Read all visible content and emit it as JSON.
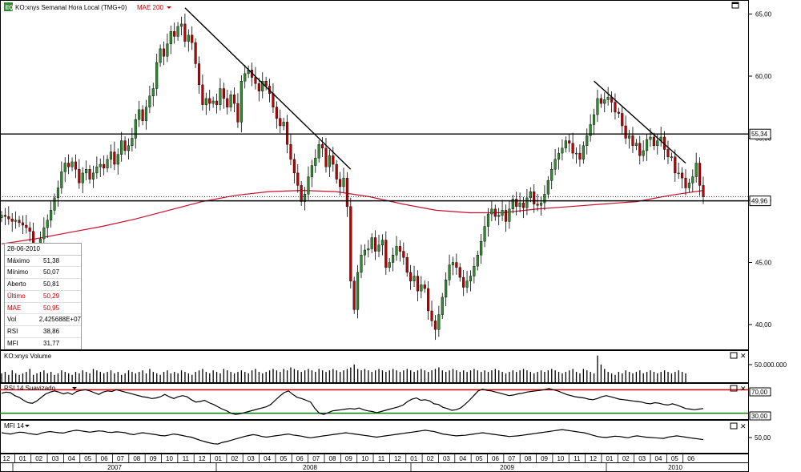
{
  "header": {
    "badge": "EQ",
    "title": "KO:xnys Semanal Hora Local (TMG+0)",
    "indicator": "MAE 200"
  },
  "price_axis": {
    "ticks": [
      "65,00",
      "60,00",
      "55,00",
      "50,00",
      "45,00",
      "40,00"
    ],
    "resistance_label": "55,34",
    "current_label": "49,96"
  },
  "info_box": {
    "date": "28-06-2010",
    "rows": [
      {
        "label": "Máximo",
        "value": "51,38"
      },
      {
        "label": "Mínimo",
        "value": "50,07"
      },
      {
        "label": "Aberto",
        "value": "50,81"
      },
      {
        "label": "Último",
        "value": "50,29"
      },
      {
        "label": "MAE",
        "value": "50,95"
      },
      {
        "label": "Vol",
        "value": "2,425688E+07"
      },
      {
        "label": "RSI",
        "value": "38,86"
      },
      {
        "label": "MFI",
        "value": "31,77"
      }
    ]
  },
  "volume_panel": {
    "title": "KO:xnys Volume",
    "tick": "50.000.000"
  },
  "rsi_panel": {
    "title": "RSI 14 Suavizado",
    "ticks": [
      "70,00",
      "30,00"
    ]
  },
  "mfi_panel": {
    "title": "MFI 14",
    "tick": "50,00"
  },
  "time_axis": {
    "months": [
      "12",
      "01",
      "02",
      "03",
      "04",
      "05",
      "06",
      "07",
      "08",
      "09",
      "10",
      "11",
      "12",
      "01",
      "02",
      "03",
      "04",
      "05",
      "06",
      "07",
      "08",
      "09",
      "10",
      "11",
      "12",
      "01",
      "02",
      "03",
      "04",
      "05",
      "06",
      "07",
      "08",
      "09",
      "10",
      "11",
      "12",
      "01",
      "02",
      "03",
      "04",
      "05",
      "06"
    ],
    "years": [
      "2007",
      "2008",
      "2009",
      "2010"
    ]
  },
  "colors": {
    "up": "#2e8b2e",
    "down": "#c00000",
    "mae": "#c8102e",
    "rsi_high": "#e00000",
    "rsi_low": "#008000"
  },
  "chart_data": [
    {
      "type": "candlestick",
      "title": "KO:xnys Semanal Hora Local (TMG+0)",
      "ylim": [
        38,
        66
      ],
      "weekly_closes": [
        48.8,
        48.7,
        48.5,
        48.3,
        48.4,
        48.2,
        48.0,
        47.8,
        47.5,
        46.2,
        45.8,
        46.9,
        47.8,
        48.4,
        49.2,
        50.2,
        51.0,
        52.3,
        53.0,
        52.7,
        53.1,
        52.5,
        51.4,
        52.2,
        52.5,
        51.7,
        52.2,
        52.7,
        52.9,
        52.6,
        53.3,
        53.9,
        52.9,
        53.7,
        54.8,
        54.0,
        54.4,
        55.0,
        56.5,
        57.3,
        56.4,
        57.5,
        58.4,
        59.0,
        61.1,
        62.2,
        61.6,
        62.6,
        63.6,
        63.2,
        64.0,
        64.2,
        62.8,
        63.3,
        62.7,
        61.0,
        59.3,
        57.7,
        58.2,
        57.8,
        58.0,
        57.7,
        59.0,
        58.2,
        57.5,
        58.5,
        57.8,
        56.3,
        59.6,
        60.2,
        60.5,
        59.9,
        59.4,
        58.8,
        59.6,
        59.2,
        58.6,
        57.5,
        56.6,
        56.0,
        56.3,
        54.5,
        53.3,
        52.2,
        51.2,
        49.9,
        50.5,
        51.9,
        52.8,
        53.4,
        54.5,
        54.2,
        52.7,
        53.6,
        52.9,
        51.7,
        51.1,
        51.8,
        49.5,
        43.5,
        41.2,
        44.2,
        45.6,
        46.0,
        46.1,
        47.0,
        45.9,
        46.4,
        46.8,
        44.6,
        45.0,
        45.6,
        46.3,
        45.9,
        45.4,
        44.2,
        43.5,
        43.9,
        42.7,
        43.2,
        42.9,
        41.1,
        40.3,
        39.6,
        40.8,
        42.2,
        43.6,
        44.8,
        45.0,
        44.6,
        43.8,
        43.0,
        43.5,
        43.9,
        44.7,
        45.6,
        46.7,
        47.9,
        48.9,
        49.3,
        48.7,
        48.8,
        49.2,
        48.3,
        49.3,
        50.1,
        49.5,
        49.8,
        49.4,
        50.2,
        50.7,
        49.7,
        49.6,
        49.8,
        50.5,
        51.6,
        52.5,
        53.3,
        53.8,
        54.2,
        54.8,
        54.6,
        53.8,
        53.8,
        53.3,
        54.4,
        55.2,
        56.1,
        56.9,
        58.2,
        57.8,
        58.1,
        58.3,
        57.9,
        57.1,
        57.0,
        56.0,
        55.0,
        55.2,
        54.4,
        54.6,
        53.6,
        54.0,
        54.9,
        55.1,
        54.4,
        54.8,
        55.1,
        54.1,
        53.5,
        53.5,
        52.2,
        52.2,
        51.8,
        51.0,
        51.4,
        51.9,
        53.0,
        51.2,
        50.3
      ],
      "mae200": {
        "name": "MAE 200",
        "values": [
          46.5,
          46.9,
          47.4,
          47.9,
          48.5,
          49.2,
          49.9,
          50.4,
          50.7,
          50.8,
          50.7,
          50.3,
          49.7,
          49.2,
          49.0,
          49.0,
          49.3,
          49.5,
          49.7,
          49.9,
          50.4,
          50.8
        ]
      },
      "annotations": [
        {
          "type": "hline",
          "y": 55.34
        },
        {
          "type": "hline",
          "y": 49.96
        },
        {
          "type": "trendline",
          "from": [
            52,
            65.5
          ],
          "to": [
            99,
            52.5
          ]
        },
        {
          "type": "trendline",
          "from": [
            168,
            59.6
          ],
          "to": [
            194,
            53.0
          ]
        }
      ]
    },
    {
      "type": "bar",
      "title": "KO:xnys Volume",
      "values": [
        6,
        7,
        5,
        8,
        6,
        5,
        6,
        7,
        9,
        5,
        6,
        7,
        8,
        6,
        7,
        5,
        6,
        8,
        7,
        6,
        5,
        7,
        6,
        8,
        7,
        6,
        9,
        8,
        7,
        6,
        7,
        8,
        6,
        7,
        5,
        6,
        8,
        7,
        6,
        7,
        8,
        6,
        9,
        7,
        6,
        5,
        7,
        8,
        6,
        7,
        6,
        8,
        7,
        6,
        5,
        7,
        8,
        9,
        7,
        6,
        8,
        7,
        6,
        9,
        8,
        7,
        6,
        7,
        8,
        7,
        6,
        8,
        9,
        7,
        6,
        7,
        8,
        9,
        8,
        7,
        9,
        8,
        10,
        9,
        8,
        7,
        8,
        9,
        8,
        7,
        9,
        8,
        7,
        8,
        9,
        8,
        7,
        8,
        9,
        10,
        12,
        9,
        8,
        9,
        8,
        7,
        8,
        9,
        8,
        7,
        8,
        9,
        8,
        7,
        8,
        9,
        8,
        7,
        8,
        9,
        8,
        7,
        8,
        9,
        10,
        8,
        7,
        8,
        9,
        8,
        7,
        8,
        7,
        8,
        9,
        8,
        7,
        8,
        7,
        8,
        9,
        8,
        7,
        6,
        7,
        8,
        7,
        8,
        9,
        8,
        7,
        6,
        7,
        8,
        7,
        8,
        9,
        8,
        7,
        6,
        7,
        8,
        9,
        7,
        6,
        9,
        8,
        7,
        6,
        18,
        12,
        9,
        7,
        6,
        5,
        7,
        6,
        8,
        7,
        6,
        7,
        8,
        6,
        7,
        8,
        7,
        6,
        7,
        8,
        7,
        6,
        7,
        8,
        7,
        6
      ]
    },
    {
      "type": "line",
      "title": "RSI 14 Suavizado",
      "ylim": [
        20,
        80
      ],
      "levels": [
        70,
        30
      ],
      "values": [
        64,
        66,
        65,
        60,
        57,
        52,
        48,
        47,
        51,
        57,
        63,
        66,
        68,
        66,
        63,
        65,
        62,
        67,
        69,
        70,
        68,
        65,
        62,
        66,
        68,
        67,
        70,
        68,
        66,
        64,
        62,
        60,
        58,
        57,
        55,
        56,
        58,
        62,
        58,
        55,
        58,
        60,
        58,
        53,
        49,
        50,
        52,
        48,
        45,
        41,
        37,
        34,
        30,
        28,
        29,
        31,
        33,
        35,
        37,
        39,
        41,
        45,
        52,
        59,
        65,
        68,
        62,
        57,
        55,
        52,
        49,
        38,
        30,
        28,
        31,
        34,
        35,
        36,
        37,
        38,
        37,
        39,
        36,
        34,
        33,
        31,
        33,
        35,
        37,
        39,
        41,
        44,
        50,
        54,
        56,
        52,
        53,
        51,
        46,
        45,
        40,
        38,
        35,
        36,
        39,
        45,
        52,
        60,
        68,
        71,
        69,
        68,
        66,
        64,
        62,
        60,
        61,
        63,
        64,
        66,
        67,
        68,
        69,
        70,
        72,
        70,
        68,
        65,
        62,
        60,
        58,
        57,
        56,
        54,
        53,
        55,
        58,
        60,
        58,
        56,
        54,
        53,
        52,
        51,
        50,
        49,
        47,
        46,
        48,
        47,
        45,
        44,
        46,
        44,
        41,
        38,
        37,
        36,
        37,
        38
      ]
    },
    {
      "type": "line",
      "title": "MFI 14",
      "ylim": [
        0,
        100
      ],
      "values": [
        64,
        62,
        60,
        63,
        66,
        65,
        62,
        60,
        58,
        63,
        66,
        68,
        66,
        64,
        63,
        67,
        70,
        72,
        70,
        68,
        66,
        68,
        70,
        69,
        66,
        65,
        67,
        66,
        64,
        60,
        58,
        62,
        64,
        62,
        60,
        58,
        55,
        54,
        57,
        60,
        58,
        55,
        52,
        50,
        45,
        40,
        36,
        32,
        29,
        28,
        33,
        36,
        40,
        44,
        48,
        52,
        55,
        58,
        56,
        52,
        50,
        52,
        54,
        56,
        58,
        60,
        57,
        55,
        53,
        50,
        48,
        50,
        52,
        54,
        56,
        58,
        60,
        62,
        64,
        62,
        60,
        58,
        56,
        54,
        52,
        50,
        52,
        54,
        56,
        58,
        60,
        62,
        64,
        66,
        68,
        70,
        72,
        70,
        68,
        64,
        60,
        58,
        56,
        54,
        55,
        56,
        58,
        60,
        62,
        64,
        62,
        60,
        58,
        56,
        54,
        52,
        53,
        54,
        56,
        58,
        60,
        62,
        64,
        66,
        68,
        70,
        72,
        74,
        72,
        70,
        68,
        66,
        64,
        60,
        56,
        52,
        50,
        49,
        51,
        53,
        52,
        50,
        48,
        52,
        54,
        52,
        50,
        49,
        48,
        47,
        46,
        50,
        52,
        54,
        52,
        50,
        48,
        46,
        44,
        42
      ]
    }
  ]
}
